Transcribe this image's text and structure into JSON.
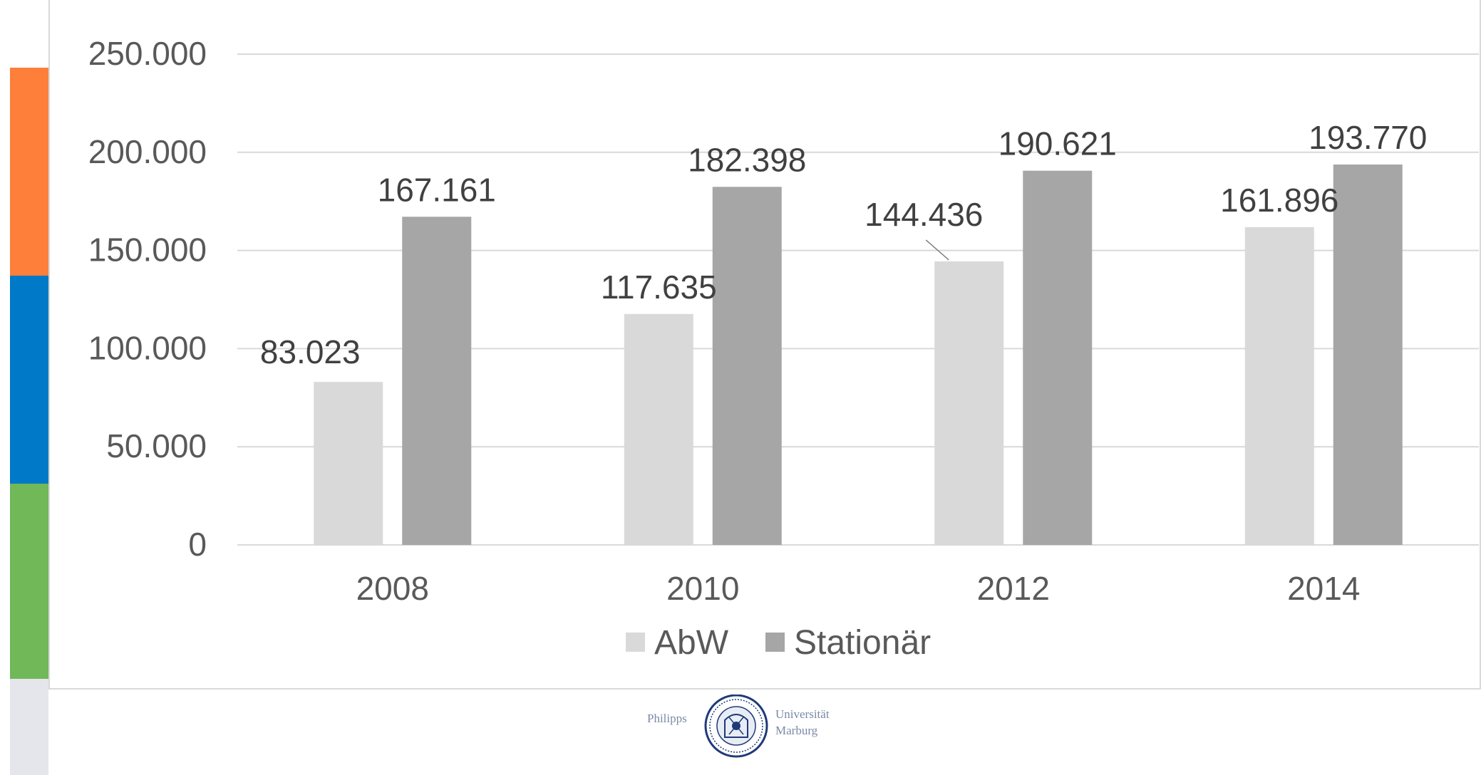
{
  "colors": {
    "accent_orange": "#fd7f3a",
    "accent_blue": "#0079c8",
    "accent_green": "#70b858",
    "accent_gray": "#e5e6eb",
    "series_abw": "#d9d9d9",
    "series_stationaer": "#a6a6a6",
    "gridline": "#d9d9d9",
    "text": "#595959",
    "logo": "#1f3a78"
  },
  "logo": {
    "left_word": "Philipps",
    "right_word_1": "Universität",
    "right_word_2": "Marburg",
    "icon": "university-seal-icon"
  },
  "chart_data": {
    "type": "bar",
    "title": "",
    "xlabel": "",
    "ylabel": "",
    "categories": [
      "2008",
      "2010",
      "2012",
      "2014"
    ],
    "series": [
      {
        "name": "AbW",
        "values": [
          83023,
          117635,
          144436,
          161896
        ],
        "labels": [
          "83.023",
          "117.635",
          "144.436",
          "161.896"
        ]
      },
      {
        "name": "Stationär",
        "values": [
          167161,
          182398,
          190621,
          193770
        ],
        "labels": [
          "167.161",
          "182.398",
          "190.621",
          "193.770"
        ]
      }
    ],
    "ylim": [
      0,
      250000
    ],
    "yticks": [
      0,
      50000,
      100000,
      150000,
      200000,
      250000
    ],
    "ytick_labels": [
      "0",
      "50.000",
      "100.000",
      "150.000",
      "200.000",
      "250.000"
    ],
    "grid": true,
    "legend_position": "bottom"
  }
}
